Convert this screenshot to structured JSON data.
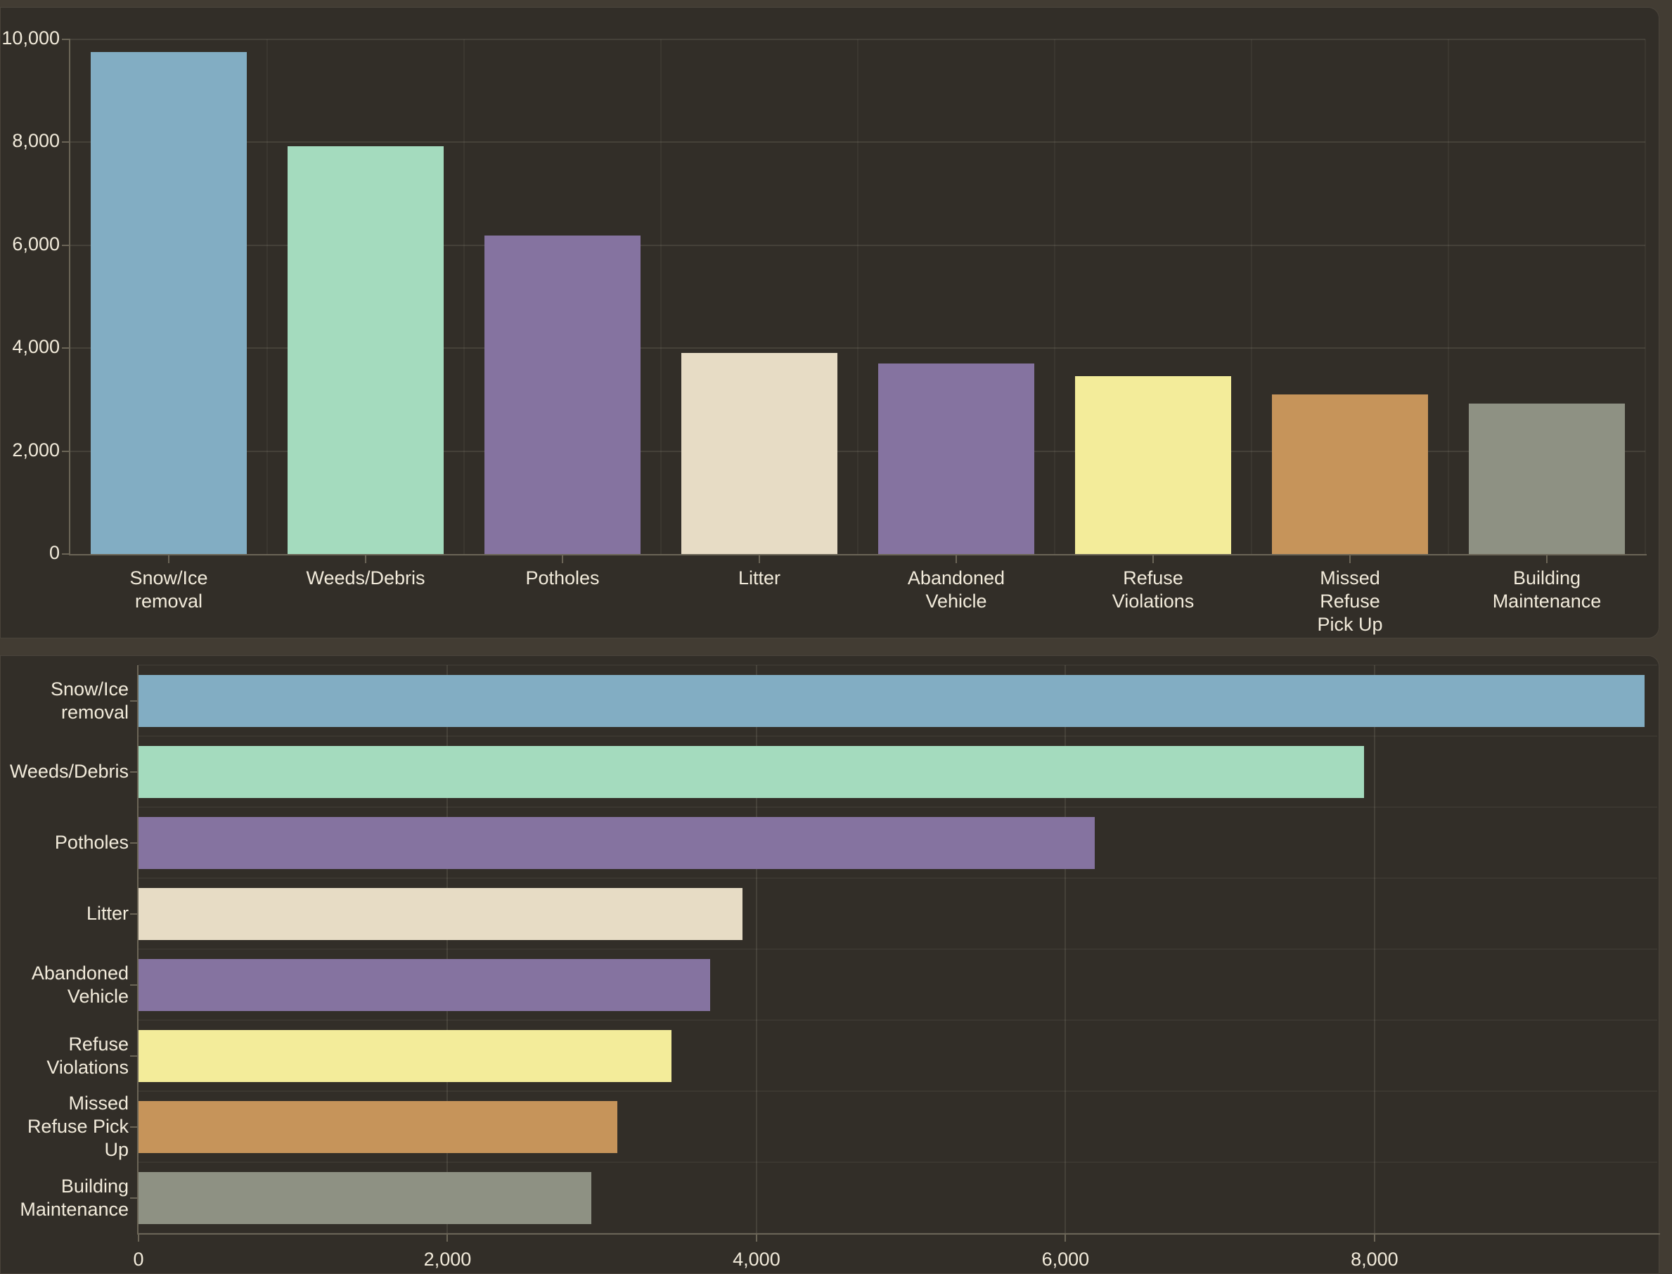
{
  "theme": {
    "page_background": "#423c33",
    "panel_background": "#322e28",
    "text_color": "#f2ebdb",
    "axis_color": "#6b6557"
  },
  "chart_data": [
    {
      "type": "bar",
      "orientation": "vertical",
      "grid": true,
      "legend": "none",
      "categories": [
        "Snow/Ice removal",
        "Weeds/Debris",
        "Potholes",
        "Litter",
        "Abandoned Vehicle",
        "Refuse Violations",
        "Missed Refuse Pick Up",
        "Building Maintenance"
      ],
      "category_labels_wrapped": [
        "Snow/Ice\nremoval",
        "Weeds/Debris",
        "Potholes",
        "Litter",
        "Abandoned\nVehicle",
        "Refuse\nViolations",
        "Missed\nRefuse\nPick Up",
        "Building\nMaintenance"
      ],
      "values": [
        9750,
        7930,
        6190,
        3910,
        3700,
        3450,
        3100,
        2930
      ],
      "colors": [
        "#82adc3",
        "#a4dbbe",
        "#8573a0",
        "#e7dcc5",
        "#8573a0",
        "#f3ec9a",
        "#c6945a",
        "#8e9183"
      ],
      "xlabel": "",
      "ylabel": "",
      "ylim": [
        0,
        10000
      ],
      "yticks": [
        0,
        2000,
        4000,
        6000,
        8000,
        10000
      ],
      "ytick_labels": [
        "0",
        "2,000",
        "4,000",
        "6,000",
        "8,000",
        "10,000"
      ]
    },
    {
      "type": "bar",
      "orientation": "horizontal",
      "grid": true,
      "legend": "none",
      "categories": [
        "Snow/Ice removal",
        "Weeds/Debris",
        "Potholes",
        "Litter",
        "Abandoned Vehicle",
        "Refuse Violations",
        "Missed Refuse Pick Up",
        "Building Maintenance"
      ],
      "category_labels_wrapped": [
        "Snow/Ice\nremoval",
        "Weeds/Debris",
        "Potholes",
        "Litter",
        "Abandoned\nVehicle",
        "Refuse\nViolations",
        "Missed\nRefuse Pick\nUp",
        "Building\nMaintenance"
      ],
      "values": [
        9750,
        7930,
        6190,
        3910,
        3700,
        3450,
        3100,
        2930
      ],
      "colors": [
        "#82adc3",
        "#a4dbbe",
        "#8573a0",
        "#e7dcc5",
        "#8573a0",
        "#f3ec9a",
        "#c6945a",
        "#8e9183"
      ],
      "xlabel": "",
      "ylabel": "",
      "xlim": [
        0,
        9830
      ],
      "xticks": [
        0,
        2000,
        4000,
        6000,
        8000
      ],
      "xtick_labels": [
        "0",
        "2,000",
        "4,000",
        "6,000",
        "8,000"
      ]
    }
  ]
}
